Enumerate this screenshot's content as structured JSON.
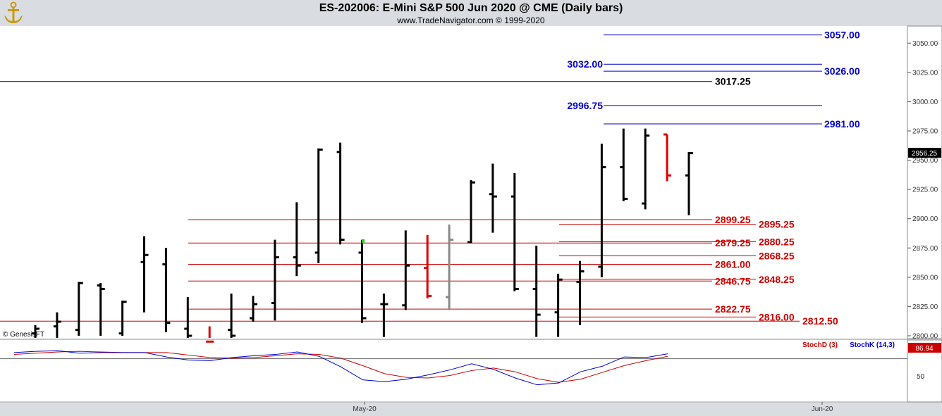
{
  "header": {
    "title": "ES-202006:  E-Mini S&P 500 Jun 2020 @ CME  (Daily bars)",
    "subtitle": "www.TradeNavigator.com © 1999-2020"
  },
  "copyright": "© GenesisFT",
  "chart_data": {
    "type": "bar",
    "title": "ES-202006:  E-Mini S&P 500 Jun 2020 @ CME  (Daily bars)",
    "ylim": [
      2800,
      3065
    ],
    "y_ticks": [
      "3050.00",
      "3025.00",
      "3000.00",
      "2975.00",
      "2950.00",
      "2925.00",
      "2900.00",
      "2875.00",
      "2850.00",
      "2825.00",
      "2800.00"
    ],
    "x_labels": [
      "May-20",
      "Jun-20"
    ],
    "last_price": "2956.25",
    "bars": [
      {
        "h": 2809,
        "l": 2795,
        "o": 2802,
        "c": 2806,
        "color": "#000000"
      },
      {
        "h": 2820,
        "l": 2796,
        "o": 2808,
        "c": 2812,
        "color": "#000000"
      },
      {
        "h": 2846,
        "l": 2800,
        "o": 2805,
        "c": 2845,
        "color": "#000000"
      },
      {
        "h": 2845,
        "l": 2800,
        "o": 2843,
        "c": 2840,
        "color": "#000000"
      },
      {
        "h": 2830,
        "l": 2800,
        "o": 2802,
        "c": 2829,
        "color": "#000000"
      },
      {
        "h": 2885,
        "l": 2820,
        "o": 2863,
        "c": 2869,
        "color": "#000000"
      },
      {
        "h": 2875,
        "l": 2803,
        "o": 2861,
        "c": 2811,
        "color": "#000000"
      },
      {
        "h": 2833,
        "l": 2793,
        "o": 2806,
        "c": 2800,
        "color": "#000000"
      },
      {
        "h": 2808,
        "l": 2790,
        "o": 2795,
        "c": 2795,
        "color": "#dd0000"
      },
      {
        "h": 2836,
        "l": 2796,
        "o": 2805,
        "c": 2800,
        "color": "#000000"
      },
      {
        "h": 2834,
        "l": 2812,
        "o": 2815,
        "c": 2827,
        "color": "#000000"
      },
      {
        "h": 2882,
        "l": 2813,
        "o": 2828,
        "c": 2867,
        "color": "#000000"
      },
      {
        "h": 2914,
        "l": 2851,
        "o": 2867,
        "c": 2860,
        "color": "#000000"
      },
      {
        "h": 2960,
        "l": 2862,
        "o": 2871,
        "c": 2959,
        "color": "#000000"
      },
      {
        "h": 2965,
        "l": 2878,
        "o": 2957,
        "c": 2882,
        "color": "#000000"
      },
      {
        "h": 2882,
        "l": 2811,
        "o": 2871,
        "c": 2815,
        "color": "#000000"
      },
      {
        "h": 2836,
        "l": 2799,
        "o": 2827,
        "c": 2827,
        "color": "#000000"
      },
      {
        "h": 2890,
        "l": 2822,
        "o": 2826,
        "c": 2860,
        "color": "#000000"
      },
      {
        "h": 2886,
        "l": 2832,
        "o": 2858,
        "c": 2834,
        "color": "#dd0000"
      },
      {
        "h": 2895,
        "l": 2822,
        "o": 2833,
        "c": 2882,
        "color": "#888888"
      },
      {
        "h": 2933,
        "l": 2879,
        "o": 2880,
        "c": 2931,
        "color": "#000000"
      },
      {
        "h": 2947,
        "l": 2888,
        "o": 2921,
        "c": 2919,
        "color": "#000000"
      },
      {
        "h": 2939,
        "l": 2838,
        "o": 2919,
        "c": 2840,
        "color": "#000000"
      },
      {
        "h": 2877,
        "l": 2799,
        "o": 2840,
        "c": 2818,
        "color": "#000000"
      },
      {
        "h": 2853,
        "l": 2799,
        "o": 2820,
        "c": 2848,
        "color": "#000000"
      },
      {
        "h": 2864,
        "l": 2809,
        "o": 2846,
        "c": 2855,
        "color": "#000000"
      },
      {
        "h": 2964,
        "l": 2850,
        "o": 2859,
        "c": 2944,
        "color": "#000000"
      },
      {
        "h": 2977,
        "l": 2915,
        "o": 2944,
        "c": 2917,
        "color": "#000000"
      },
      {
        "h": 2977,
        "l": 2908,
        "o": 2913,
        "c": 2971,
        "color": "#000000"
      },
      {
        "h": 2972,
        "l": 2932,
        "o": 2972,
        "c": 2937,
        "color": "#dd0000"
      },
      {
        "h": 2957,
        "l": 2903,
        "o": 2937,
        "c": 2956,
        "color": "#000000"
      }
    ],
    "levels": [
      {
        "label": "3057.00",
        "value": 3057.0,
        "color": "#0000cc",
        "side": "right"
      },
      {
        "label": "3032.00",
        "value": 3032.0,
        "color": "#0000cc",
        "side": "left"
      },
      {
        "label": "3026.00",
        "value": 3026.0,
        "color": "#0000cc",
        "side": "right"
      },
      {
        "label": "3017.25",
        "value": 3017.25,
        "color": "#000000",
        "side": "left"
      },
      {
        "label": "2996.75",
        "value": 2996.75,
        "color": "#0000cc",
        "side": "left"
      },
      {
        "label": "2981.00",
        "value": 2981.0,
        "color": "#0000cc",
        "side": "right"
      },
      {
        "label": "2899.25",
        "value": 2899.25,
        "color": "#cc0000",
        "side": "left"
      },
      {
        "label": "2895.25",
        "value": 2895.25,
        "color": "#cc0000",
        "side": "right"
      },
      {
        "label": "2880.25",
        "value": 2880.25,
        "color": "#cc0000",
        "side": "right"
      },
      {
        "label": "2879.25",
        "value": 2879.25,
        "color": "#cc0000",
        "side": "left"
      },
      {
        "label": "2868.25",
        "value": 2868.25,
        "color": "#cc0000",
        "side": "right"
      },
      {
        "label": "2861.00",
        "value": 2861.0,
        "color": "#cc0000",
        "side": "left"
      },
      {
        "label": "2848.25",
        "value": 2848.25,
        "color": "#cc0000",
        "side": "right"
      },
      {
        "label": "2846.75",
        "value": 2846.75,
        "color": "#cc0000",
        "side": "left"
      },
      {
        "label": "2822.75",
        "value": 2822.75,
        "color": "#cc0000",
        "side": "left"
      },
      {
        "label": "2816.00",
        "value": 2816.0,
        "color": "#cc0000",
        "side": "right"
      },
      {
        "label": "2812.50",
        "value": 2812.5,
        "color": "#cc0000",
        "side": "far"
      }
    ],
    "indicator": {
      "stochd_label": "StochD (3)",
      "stochk_label": "StochK (14,3)",
      "last_value": "86.94",
      "tick_label": "50",
      "ylim": [
        0,
        100
      ],
      "stochd": [
        88,
        90,
        92,
        93,
        92,
        91,
        91,
        91,
        87,
        83,
        82,
        83,
        86,
        89,
        88,
        82,
        70,
        57,
        51,
        50,
        54,
        62,
        66,
        60,
        49,
        43,
        48,
        59,
        70,
        78,
        85
      ],
      "stochk": [
        91,
        93,
        94,
        90,
        91,
        91,
        91,
        84,
        79,
        78,
        83,
        86,
        88,
        92,
        85,
        68,
        47,
        44,
        48,
        55,
        63,
        73,
        64,
        50,
        39,
        42,
        60,
        69,
        84,
        83,
        89
      ]
    }
  }
}
